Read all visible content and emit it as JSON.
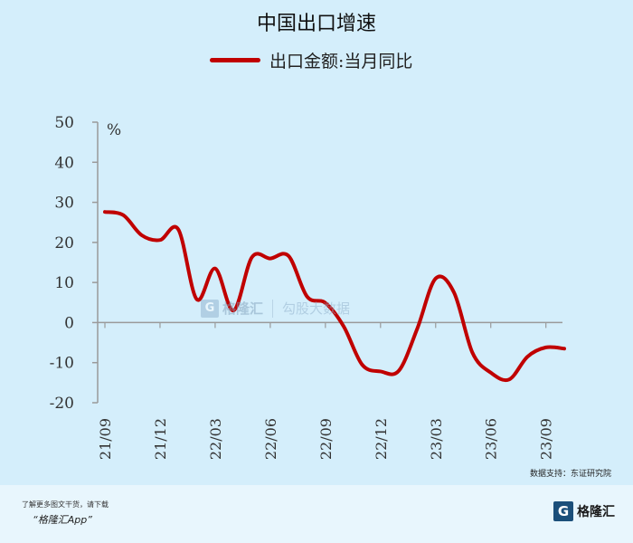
{
  "chart_data": {
    "type": "line",
    "title": "中国出口增速",
    "ylabel": "%",
    "ylim": [
      -20,
      50
    ],
    "yticks": [
      "50",
      "40",
      "30",
      "20",
      "10",
      "0",
      "-10",
      "-20"
    ],
    "x_tick_labels": [
      "21/09",
      "21/12",
      "22/03",
      "22/06",
      "22/09",
      "22/12",
      "23/03",
      "23/06",
      "23/09"
    ],
    "x": [
      "2021-09",
      "2021-10",
      "2021-11",
      "2021-12",
      "2022-01",
      "2022-02",
      "2022-03",
      "2022-04",
      "2022-05",
      "2022-06",
      "2022-07",
      "2022-08",
      "2022-09",
      "2022-10",
      "2022-11",
      "2022-12",
      "2023-01",
      "2023-02",
      "2023-03",
      "2023-04",
      "2023-05",
      "2023-06",
      "2023-07",
      "2023-08",
      "2023-09",
      "2023-10"
    ],
    "series": [
      {
        "name": "出口金额:当月同比",
        "values": [
          27.6,
          26.8,
          21.8,
          20.6,
          23.2,
          5.8,
          13.5,
          3.0,
          16.3,
          16.0,
          16.6,
          6.5,
          4.9,
          -1.0,
          -10.5,
          -12.2,
          -12.0,
          -1.5,
          11.0,
          7.5,
          -7.5,
          -12.5,
          -14.2,
          -8.5,
          -6.2,
          -6.5
        ]
      }
    ],
    "grid": false,
    "legend_position": "top-center",
    "line_color": "#c00000"
  },
  "source_text": "数据支持：东证研究院",
  "footer": {
    "note": "了解更多图文干货，请下载",
    "app": "“格隆汇App”",
    "brand_name": "格隆汇"
  },
  "watermark": {
    "brand": "格隆汇",
    "text": "勾股大数据"
  },
  "colors": {
    "background": "#d4eefb",
    "axis": "#9a9a9a"
  }
}
